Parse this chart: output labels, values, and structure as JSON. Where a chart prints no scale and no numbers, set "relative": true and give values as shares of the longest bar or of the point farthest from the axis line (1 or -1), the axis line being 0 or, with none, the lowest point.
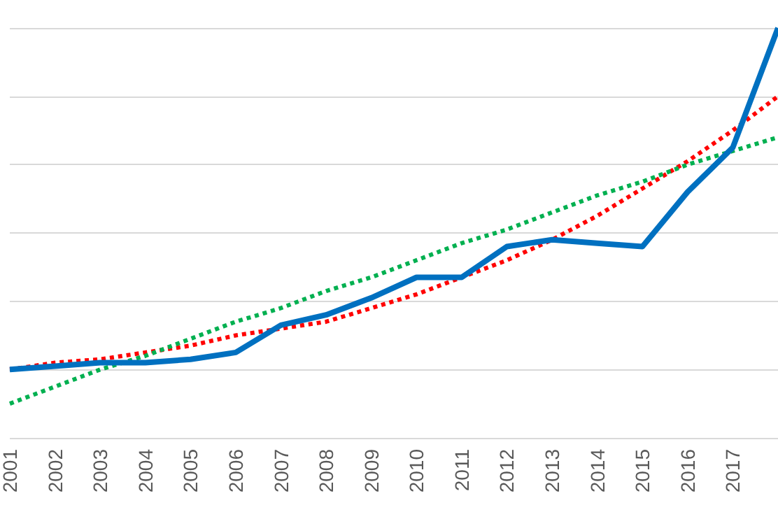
{
  "chart_data": {
    "type": "line",
    "relative": true,
    "grid": "y",
    "marker": "none",
    "categories": [
      "2001",
      "2002",
      "2003",
      "2004",
      "2005",
      "2006",
      "2007",
      "2008",
      "2009",
      "2010",
      "2011",
      "2012",
      "2013",
      "2014",
      "2015",
      "2016",
      "2017",
      null
    ],
    "series": [
      {
        "color": "#0070c0",
        "line_style": "solid",
        "values": [
          0,
          0.01,
          0.02,
          0.02,
          0.03,
          0.05,
          0.13,
          0.16,
          0.21,
          0.27,
          0.27,
          0.36,
          0.38,
          0.37,
          0.36,
          0.52,
          0.65,
          1
        ]
      },
      {
        "color": "#ff0000",
        "line_style": "dotted",
        "values": [
          0,
          0.02,
          0.03,
          0.05,
          0.07,
          0.1,
          0.12,
          0.14,
          0.18,
          0.22,
          0.27,
          0.32,
          0.38,
          0.45,
          0.53,
          0.61,
          0.7,
          0.8
        ]
      },
      {
        "color": "#00b050",
        "line_style": "dotted",
        "values": [
          -0.1,
          -0.05,
          0.0,
          0.04,
          0.09,
          0.14,
          0.18,
          0.23,
          0.27,
          0.32,
          0.37,
          0.41,
          0.46,
          0.51,
          0.55,
          0.6,
          0.64,
          0.68
        ]
      }
    ]
  }
}
